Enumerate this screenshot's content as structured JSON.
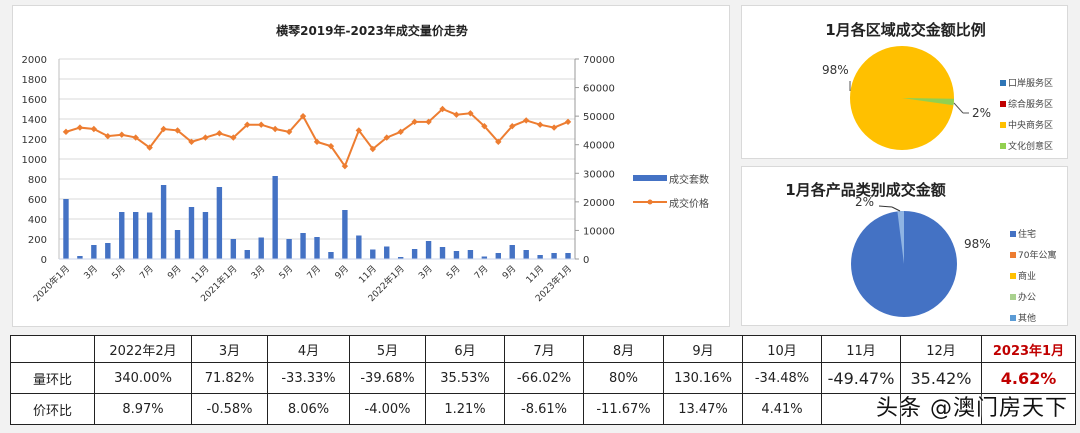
{
  "chart_data": [
    {
      "type": "bar+line",
      "title": "横琴2019年-2023年成交量价走势",
      "x_tick_labels": [
        "2020年1月",
        "3月",
        "5月",
        "7月",
        "9月",
        "11月",
        "2021年1月",
        "3月",
        "5月",
        "7月",
        "9月",
        "11月",
        "2022年1月",
        "3月",
        "5月",
        "7月",
        "9月",
        "11月",
        "2023年1月"
      ],
      "x": [
        "2020-01",
        "2020-02",
        "2020-03",
        "2020-04",
        "2020-05",
        "2020-06",
        "2020-07",
        "2020-08",
        "2020-09",
        "2020-10",
        "2020-11",
        "2020-12",
        "2021-01",
        "2021-02",
        "2021-03",
        "2021-04",
        "2021-05",
        "2021-06",
        "2021-07",
        "2021-08",
        "2021-09",
        "2021-10",
        "2021-11",
        "2021-12",
        "2022-01",
        "2022-02",
        "2022-03",
        "2022-04",
        "2022-05",
        "2022-06",
        "2022-07",
        "2022-08",
        "2022-09",
        "2022-10",
        "2022-11",
        "2022-12",
        "2023-01"
      ],
      "series": [
        {
          "name": "成交套数",
          "type": "bar",
          "axis": "left",
          "color": "#4472c4",
          "values": [
            600,
            30,
            140,
            160,
            470,
            470,
            465,
            740,
            290,
            520,
            470,
            720,
            200,
            90,
            215,
            830,
            200,
            260,
            220,
            70,
            490,
            235,
            95,
            125,
            20,
            100,
            180,
            120,
            80,
            90,
            25,
            60,
            140,
            90,
            40,
            60,
            60
          ]
        },
        {
          "name": "成交价格",
          "type": "line",
          "axis": "right",
          "color": "#ed7d31",
          "values": [
            44500,
            46000,
            45500,
            43000,
            43500,
            42500,
            39000,
            45500,
            45000,
            41000,
            42500,
            44000,
            42500,
            47000,
            47000,
            45500,
            44500,
            50000,
            41000,
            39500,
            32500,
            45000,
            38500,
            42500,
            44500,
            48000,
            48000,
            52500,
            50500,
            51000,
            46500,
            41000,
            46500,
            48500,
            47000,
            46000,
            48000
          ]
        }
      ],
      "y_left": {
        "min": 0,
        "max": 2000,
        "ticks": [
          0,
          200,
          400,
          600,
          800,
          1000,
          1200,
          1400,
          1600,
          1800,
          2000
        ]
      },
      "y_right": {
        "min": 0,
        "max": 70000,
        "ticks": [
          0,
          10000,
          20000,
          30000,
          40000,
          50000,
          60000,
          70000
        ]
      },
      "grid": true,
      "legend_position": "right"
    },
    {
      "type": "pie",
      "title": "1月各区域成交金额比例",
      "categories": [
        "口岸服务区",
        "综合服务区",
        "中央商务区",
        "文化创意区"
      ],
      "values": [
        0,
        0,
        98,
        2
      ],
      "colors": [
        "#2e75b6",
        "#c00000",
        "#ffc000",
        "#92d050"
      ],
      "data_labels": [
        "98%",
        "2%"
      ],
      "legend_position": "right"
    },
    {
      "type": "pie",
      "title": "1月各产品类别成交金额",
      "categories": [
        "住宅",
        "70年公寓",
        "商业",
        "办公",
        "其他"
      ],
      "values": [
        98,
        0,
        0,
        0,
        2
      ],
      "colors": [
        "#4472c4",
        "#ed7d31",
        "#ffc000",
        "#a9d18e",
        "#5b9bd5"
      ],
      "data_labels": [
        "98%",
        "2%"
      ],
      "legend_position": "right"
    },
    {
      "type": "table",
      "columns": [
        "",
        "2022年2月",
        "3月",
        "4月",
        "5月",
        "6月",
        "7月",
        "8月",
        "9月",
        "10月",
        "11月",
        "12月",
        "2023年1月"
      ],
      "rows": [
        {
          "label": "量环比",
          "values": [
            "340.00%",
            "71.82%",
            "-33.33%",
            "-39.68%",
            "35.53%",
            "-66.02%",
            "80%",
            "130.16%",
            "-34.48%",
            "-49.47%",
            "35.42%",
            "4.62%"
          ]
        },
        {
          "label": "价环比",
          "values": [
            "8.97%",
            "-0.58%",
            "8.06%",
            "-4.00%",
            "1.21%",
            "-8.61%",
            "-11.67%",
            "13.47%",
            "4.41%",
            "",
            "",
            ""
          ]
        }
      ]
    }
  ],
  "main_chart": {
    "title": "横琴2019年-2023年成交量价走势",
    "legend": {
      "bar": "成交套数",
      "line": "成交价格"
    }
  },
  "pie1": {
    "title": "1月各区域成交金额比例",
    "label_major": "98%",
    "label_minor": "2%",
    "legend": [
      "口岸服务区",
      "综合服务区",
      "中央商务区",
      "文化创意区"
    ]
  },
  "pie2": {
    "title": "1月各产品类别成交金额",
    "label_major": "98%",
    "label_minor": "2%",
    "legend": [
      "住宅",
      "70年公寓",
      "商业",
      "办公",
      "其他"
    ]
  },
  "table": {
    "headers": [
      "",
      "2022年2月",
      "3月",
      "4月",
      "5月",
      "6月",
      "7月",
      "8月",
      "9月",
      "10月",
      "11月",
      "12月",
      "2023年1月"
    ],
    "row1_label": "量环比",
    "row1": [
      "340.00%",
      "71.82%",
      "-33.33%",
      "-39.68%",
      "35.53%",
      "-66.02%",
      "80%",
      "130.16%",
      "-34.48%",
      "-49.47%",
      "35.42%",
      "4.62%"
    ],
    "row2_label": "价环比",
    "row2": [
      "8.97%",
      "-0.58%",
      "8.06%",
      "-4.00%",
      "1.21%",
      "-8.61%",
      "-11.67%",
      "13.47%",
      "4.41%",
      "",
      "",
      ""
    ]
  },
  "watermark": "头条 @澳门房天下",
  "colors": {
    "bar": "#4472c4",
    "line": "#ed7d31",
    "highlight": "#c00000"
  }
}
